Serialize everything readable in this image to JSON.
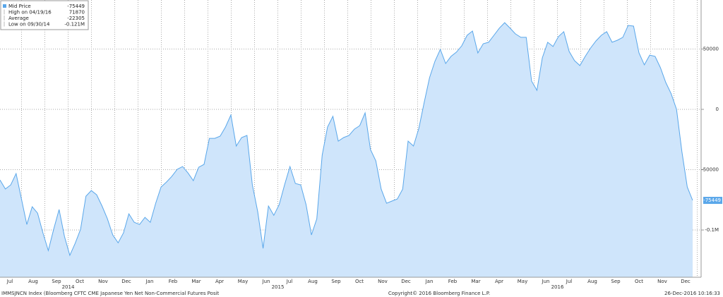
{
  "chart_data": {
    "type": "area",
    "series": [
      {
        "name": "Mid Price",
        "color": "#5aa7ea",
        "fill": "#cfe5fb",
        "values": [
          -58500,
          -66000,
          -62600,
          -53200,
          -74300,
          -95400,
          -80700,
          -86000,
          -102400,
          -117000,
          -99400,
          -83000,
          -105300,
          -121000,
          -111000,
          -99400,
          -72000,
          -67300,
          -70800,
          -80100,
          -90700,
          -104100,
          -110600,
          -102400,
          -86600,
          -93600,
          -95400,
          -89500,
          -93600,
          -77800,
          -64400,
          -60300,
          -55600,
          -49700,
          -47400,
          -52700,
          -59100,
          -48000,
          -45600,
          -24000,
          -24000,
          -22200,
          -14600,
          -4700,
          -30400,
          -23400,
          -21600,
          -62600,
          -84800,
          -115200,
          -80100,
          -87800,
          -79000,
          -62600,
          -47400,
          -61400,
          -62600,
          -79000,
          -104100,
          -90700,
          -38000,
          -14600,
          -5800,
          -26300,
          -23400,
          -21600,
          -16400,
          -13500,
          -2900,
          -33300,
          -42700,
          -66100,
          -77800,
          -76000,
          -74300,
          -66100,
          -26300,
          -30400,
          -15800,
          5800,
          26300,
          39800,
          49700,
          38000,
          43900,
          47400,
          52700,
          61400,
          64900,
          46800,
          54400,
          55600,
          61400,
          67300,
          71870,
          67300,
          62600,
          59700,
          59700,
          23400,
          15800,
          42700,
          55600,
          52100,
          60300,
          64400,
          48000,
          40400,
          36300,
          43900,
          50900,
          56700,
          61400,
          64400,
          55600,
          57300,
          59700,
          69600,
          69000,
          46800,
          36900,
          45000,
          43900,
          34500,
          22200,
          12900,
          0,
          -35100,
          -64400,
          -75449
        ]
      }
    ],
    "ylim": [
      -139160,
      90640
    ],
    "yticks": [
      50000,
      0,
      -50000,
      {
        "value": -100000,
        "label": "-0.1M"
      }
    ],
    "grid": true,
    "months": [
      "Jul",
      "Aug",
      "Sep",
      "Oct",
      "Nov",
      "Dec",
      "Jan",
      "Feb",
      "Mar",
      "Apr",
      "May",
      "Jun",
      "Jul",
      "Aug",
      "Sep",
      "Oct",
      "Nov",
      "Dec",
      "Jan",
      "Feb",
      "Mar",
      "Apr",
      "May",
      "Jun",
      "Jul",
      "Aug",
      "Sep",
      "Oct",
      "Nov",
      "Dec"
    ],
    "years": [
      "2014",
      "2015",
      "2016"
    ],
    "legend": [
      {
        "label": "Mid Price",
        "value": -75449
      },
      {
        "label": "High on 04/19/16",
        "value": 71870
      },
      {
        "label": "Average",
        "value": -22305
      },
      {
        "label": "Low on 09/30/14",
        "value": -121000,
        "value_label": "-0.121M"
      }
    ],
    "footer": {
      "source": "IMMSJNCN Index (Bloomberg CFTC CME Japanese Yen Net Non-Commercial Futures Posit",
      "copyright": "Copyright© 2016 Bloomberg Finance L.P.",
      "timestamp": "26-Dec-2016 10:16:33"
    }
  }
}
